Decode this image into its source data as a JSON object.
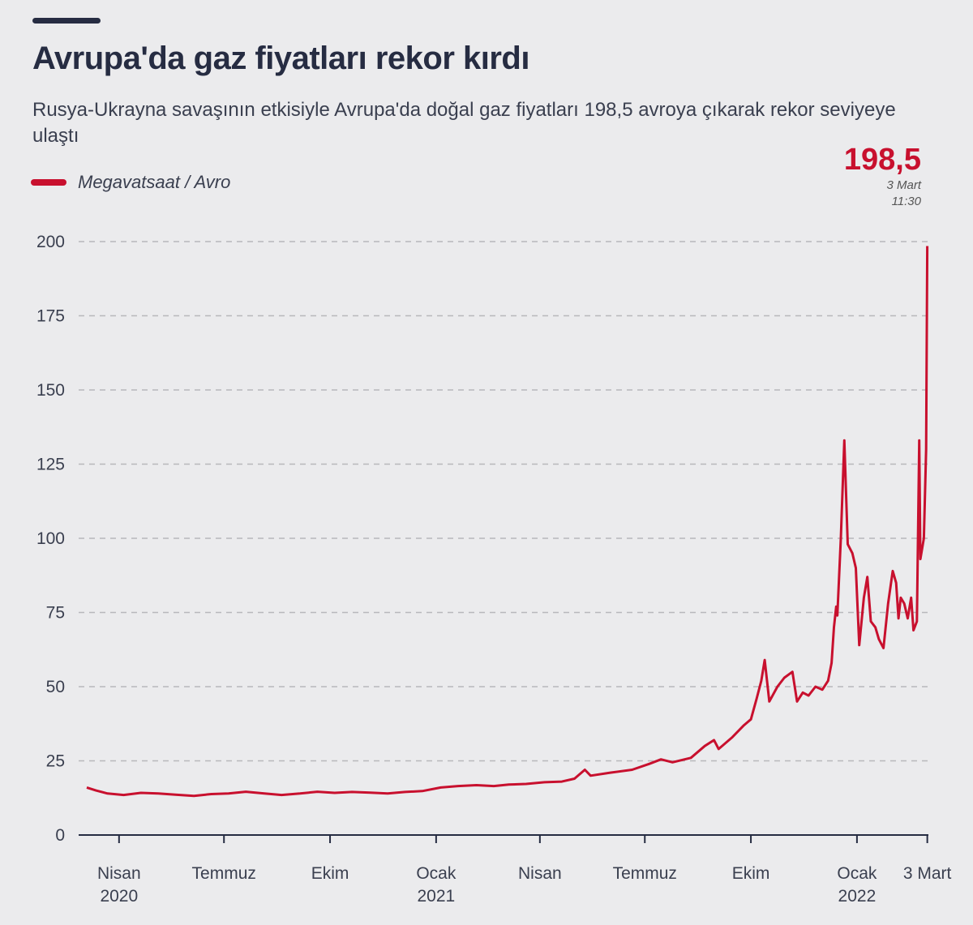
{
  "header": {
    "title": "Avrupa'da gaz fiyatları rekor kırdı",
    "subtitle": "Rusya-Ukrayna savaşının etkisiyle Avrupa'da doğal gaz fiyatları 198,5 avroya çıkarak rekor seviyeye ulaştı"
  },
  "annotation": {
    "value": "198,5",
    "date": "3 Mart",
    "time": "11:30"
  },
  "colors": {
    "line": "#c8102e",
    "text": "#262c42",
    "background": "#ebebed",
    "grid": "#b8b8bc"
  },
  "chart_data": {
    "type": "line",
    "title": "Avrupa'da gaz fiyatları rekor kırdı",
    "legend": [
      {
        "name": "Megavatsaat / Avro",
        "color": "#c8102e"
      }
    ],
    "legend_placement": "top-left",
    "ylim": [
      0,
      200
    ],
    "yticks": [
      0,
      25,
      50,
      75,
      100,
      125,
      150,
      175,
      200
    ],
    "grid": "horizontal dashed",
    "xticks": [
      {
        "date": "2020-04-01",
        "label": "Nisan",
        "sub": "2020"
      },
      {
        "date": "2020-07-01",
        "label": "Temmuz",
        "sub": ""
      },
      {
        "date": "2020-10-01",
        "label": "Ekim",
        "sub": ""
      },
      {
        "date": "2021-01-01",
        "label": "Ocak",
        "sub": "2021"
      },
      {
        "date": "2021-04-01",
        "label": "Nisan",
        "sub": ""
      },
      {
        "date": "2021-07-01",
        "label": "Temmuz",
        "sub": ""
      },
      {
        "date": "2021-10-01",
        "label": "Ekim",
        "sub": ""
      },
      {
        "date": "2022-01-01",
        "label": "Ocak",
        "sub": "2022"
      },
      {
        "date": "2022-03-03",
        "label": "3 Mart",
        "sub": ""
      }
    ],
    "series": [
      {
        "name": "Megavatsaat / Avro",
        "points": [
          [
            "2020-03-04",
            16
          ],
          [
            "2020-03-12",
            15
          ],
          [
            "2020-03-22",
            14
          ],
          [
            "2020-04-05",
            13.5
          ],
          [
            "2020-04-20",
            14.2
          ],
          [
            "2020-05-05",
            14
          ],
          [
            "2020-05-20",
            13.6
          ],
          [
            "2020-06-05",
            13.2
          ],
          [
            "2020-06-20",
            13.8
          ],
          [
            "2020-07-05",
            14
          ],
          [
            "2020-07-20",
            14.6
          ],
          [
            "2020-08-05",
            14
          ],
          [
            "2020-08-20",
            13.5
          ],
          [
            "2020-09-05",
            14
          ],
          [
            "2020-09-20",
            14.6
          ],
          [
            "2020-10-05",
            14.2
          ],
          [
            "2020-10-20",
            14.5
          ],
          [
            "2020-11-05",
            14.3
          ],
          [
            "2020-11-20",
            14
          ],
          [
            "2020-12-05",
            14.5
          ],
          [
            "2020-12-20",
            14.8
          ],
          [
            "2021-01-05",
            16
          ],
          [
            "2021-01-20",
            16.5
          ],
          [
            "2021-02-05",
            16.8
          ],
          [
            "2021-02-20",
            16.5
          ],
          [
            "2021-03-05",
            17
          ],
          [
            "2021-03-20",
            17.2
          ],
          [
            "2021-04-05",
            17.8
          ],
          [
            "2021-04-20",
            18
          ],
          [
            "2021-05-01",
            19
          ],
          [
            "2021-05-10",
            22
          ],
          [
            "2021-05-15",
            20
          ],
          [
            "2021-06-01",
            21
          ],
          [
            "2021-06-20",
            22
          ],
          [
            "2021-07-05",
            24
          ],
          [
            "2021-07-15",
            25.5
          ],
          [
            "2021-07-25",
            24.5
          ],
          [
            "2021-08-10",
            26
          ],
          [
            "2021-08-22",
            30
          ],
          [
            "2021-08-30",
            32
          ],
          [
            "2021-09-03",
            29
          ],
          [
            "2021-09-15",
            33
          ],
          [
            "2021-09-25",
            37
          ],
          [
            "2021-10-01",
            39
          ],
          [
            "2021-10-06",
            46
          ],
          [
            "2021-10-10",
            52
          ],
          [
            "2021-10-13",
            59
          ],
          [
            "2021-10-17",
            45
          ],
          [
            "2021-10-24",
            50
          ],
          [
            "2021-10-30",
            53
          ],
          [
            "2021-11-06",
            55
          ],
          [
            "2021-11-10",
            45
          ],
          [
            "2021-11-15",
            48
          ],
          [
            "2021-11-20",
            47
          ],
          [
            "2021-11-26",
            50
          ],
          [
            "2021-12-02",
            49
          ],
          [
            "2021-12-07",
            52
          ],
          [
            "2021-12-10",
            58
          ],
          [
            "2021-12-12",
            70
          ],
          [
            "2021-12-14",
            77
          ],
          [
            "2021-12-15",
            74
          ],
          [
            "2021-12-18",
            100
          ],
          [
            "2021-12-21",
            133
          ],
          [
            "2021-12-24",
            98
          ],
          [
            "2021-12-28",
            95
          ],
          [
            "2021-12-31",
            90
          ],
          [
            "2022-01-03",
            64
          ],
          [
            "2022-01-07",
            80
          ],
          [
            "2022-01-10",
            87
          ],
          [
            "2022-01-13",
            72
          ],
          [
            "2022-01-17",
            70
          ],
          [
            "2022-01-20",
            66
          ],
          [
            "2022-01-24",
            63
          ],
          [
            "2022-01-28",
            78
          ],
          [
            "2022-02-01",
            89
          ],
          [
            "2022-02-04",
            85
          ],
          [
            "2022-02-06",
            73
          ],
          [
            "2022-02-08",
            80
          ],
          [
            "2022-02-11",
            78
          ],
          [
            "2022-02-14",
            73
          ],
          [
            "2022-02-17",
            80
          ],
          [
            "2022-02-19",
            69
          ],
          [
            "2022-02-22",
            72
          ],
          [
            "2022-02-24",
            133
          ],
          [
            "2022-02-25",
            93
          ],
          [
            "2022-02-28",
            100
          ],
          [
            "2022-03-02",
            130
          ],
          [
            "2022-03-03",
            198.5
          ]
        ]
      }
    ]
  }
}
